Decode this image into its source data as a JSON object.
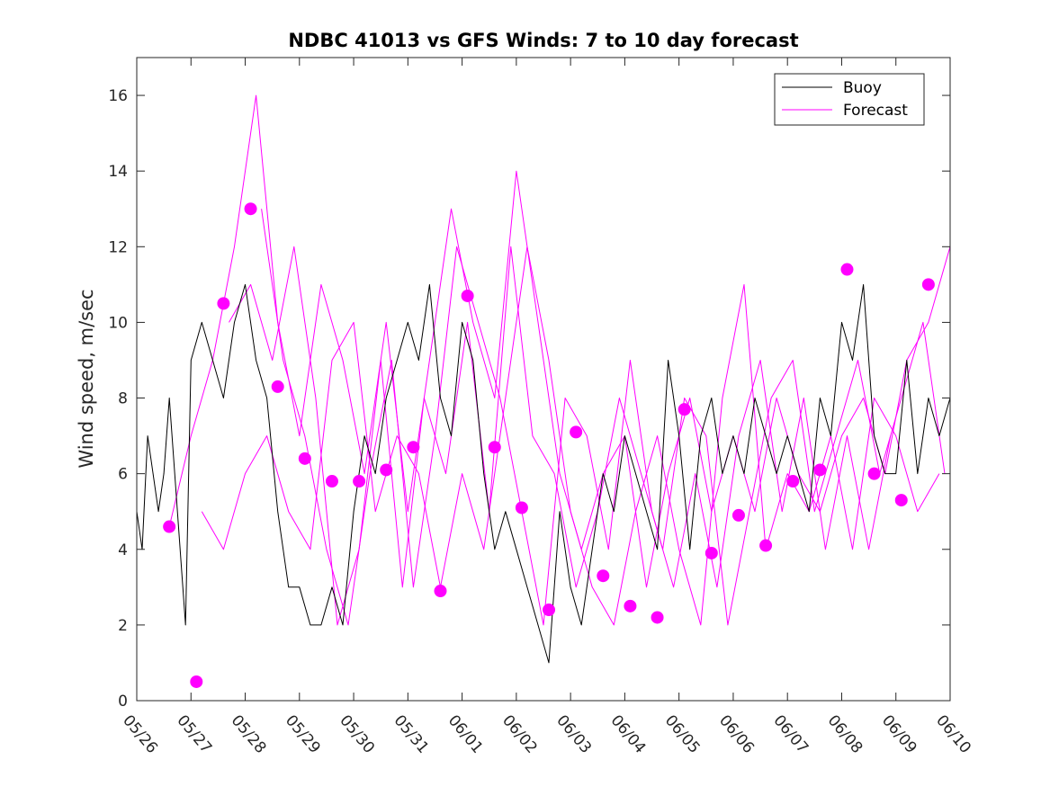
{
  "chart_data": {
    "type": "line",
    "title": "NDBC 41013 vs GFS Winds: 7 to 10 day forecast",
    "xlabel": "",
    "ylabel": "Wind speed, m/sec",
    "xlim": [
      0,
      15
    ],
    "ylim": [
      0,
      17
    ],
    "x_tick_labels": [
      "05/26",
      "05/27",
      "05/28",
      "05/29",
      "05/30",
      "05/31",
      "06/01",
      "06/02",
      "06/03",
      "06/04",
      "06/05",
      "06/06",
      "06/07",
      "06/08",
      "06/09",
      "06/10"
    ],
    "y_ticks": [
      0,
      2,
      4,
      6,
      8,
      10,
      12,
      14,
      16
    ],
    "grid": false,
    "legend_placement": "top-right",
    "legend": [
      "Buoy",
      "Forecast"
    ],
    "colors": {
      "buoy": "#000000",
      "forecast": "#ff00ff",
      "marker": "#ff00ff"
    },
    "series": [
      {
        "name": "Buoy",
        "x": [
          0.0,
          0.1,
          0.2,
          0.3,
          0.4,
          0.5,
          0.6,
          0.7,
          0.8,
          0.9,
          1.0,
          1.2,
          1.4,
          1.6,
          1.8,
          2.0,
          2.2,
          2.4,
          2.6,
          2.8,
          3.0,
          3.2,
          3.4,
          3.6,
          3.8,
          4.0,
          4.2,
          4.4,
          4.6,
          4.8,
          5.0,
          5.2,
          5.4,
          5.6,
          5.8,
          6.0,
          6.2,
          6.4,
          6.6,
          6.8,
          7.0,
          7.2,
          7.4,
          7.6,
          7.8,
          8.0,
          8.2,
          8.4,
          8.6,
          8.8,
          9.0,
          9.2,
          9.4,
          9.6,
          9.8,
          10.0,
          10.2,
          10.4,
          10.6,
          10.8,
          11.0,
          11.2,
          11.4,
          11.6,
          11.8,
          12.0,
          12.2,
          12.4,
          12.6,
          12.8,
          13.0,
          13.2,
          13.4,
          13.6,
          13.8,
          14.0,
          14.2,
          14.4,
          14.6,
          14.8,
          15.0
        ],
        "y": [
          5,
          4,
          7,
          6,
          5,
          6,
          8,
          6,
          4,
          2,
          9,
          10,
          9,
          8,
          10,
          11,
          9,
          8,
          5,
          3,
          3,
          2,
          2,
          3,
          2,
          5,
          7,
          6,
          8,
          9,
          10,
          9,
          11,
          8,
          7,
          10,
          9,
          6,
          4,
          5,
          4,
          3,
          2,
          1,
          5,
          3,
          2,
          4,
          6,
          5,
          7,
          6,
          5,
          4,
          9,
          7,
          4,
          7,
          8,
          6,
          7,
          6,
          8,
          7,
          6,
          7,
          6,
          5,
          8,
          7,
          10,
          9,
          11,
          7,
          6,
          6,
          9,
          6,
          8,
          7,
          8
        ]
      },
      {
        "name": "Forecast",
        "x": [
          0.6,
          1.0,
          1.4,
          1.8,
          2.2,
          2.6,
          3.0,
          3.4,
          3.8,
          4.2,
          4.6,
          5.0,
          5.4,
          5.8,
          6.2,
          6.6,
          7.0,
          7.4,
          7.8,
          8.2,
          8.6,
          9.0,
          9.4,
          9.8,
          10.2,
          10.6,
          11.0,
          11.4,
          11.8,
          12.2,
          12.6,
          13.0,
          13.4,
          13.8,
          14.2,
          14.6,
          15.0
        ],
        "y": [
          4.6,
          7,
          9,
          12,
          16,
          10,
          7,
          11,
          9,
          6,
          10,
          5,
          9,
          13,
          10,
          8,
          14,
          10,
          6,
          4,
          6,
          7,
          3,
          6,
          8,
          5,
          7,
          5,
          8,
          6,
          5,
          7,
          8,
          6,
          9,
          10,
          12
        ]
      },
      {
        "name": "Forecast",
        "x": [
          1.2,
          1.6,
          2.0,
          2.4,
          2.8,
          3.2,
          3.6,
          4.0,
          4.4,
          4.8,
          5.2,
          5.6,
          6.0,
          6.4,
          6.8,
          7.2,
          7.6,
          8.0,
          8.4,
          8.8,
          9.2,
          9.6,
          10.0,
          10.4,
          10.8,
          11.2,
          11.6,
          12.0,
          12.4,
          12.8,
          13.2,
          13.6,
          14.0,
          14.4,
          14.8
        ],
        "y": [
          5,
          4,
          6,
          7,
          5,
          4,
          9,
          10,
          5,
          7,
          6,
          3,
          6,
          4,
          8,
          12,
          9,
          5,
          3,
          2,
          5,
          7,
          4,
          2,
          8,
          11,
          4,
          6,
          5,
          7,
          4,
          8,
          7,
          5,
          6
        ]
      },
      {
        "name": "Forecast",
        "x": [
          1.7,
          2.1,
          2.5,
          2.9,
          3.3,
          3.7,
          4.1,
          4.5,
          4.9,
          5.3,
          5.7,
          6.1,
          6.5,
          6.9,
          7.3,
          7.7,
          8.1,
          8.5,
          8.9,
          9.3,
          9.7,
          10.1,
          10.5,
          10.9,
          11.3,
          11.7,
          12.1,
          12.5,
          12.9,
          13.3,
          13.7,
          14.1,
          14.5,
          14.9
        ],
        "y": [
          10,
          11,
          9,
          12,
          8,
          2,
          4,
          9,
          3,
          8,
          6,
          10,
          5,
          12,
          7,
          6,
          3,
          5,
          8,
          6,
          4,
          8,
          7,
          2,
          5,
          8,
          9,
          5,
          7,
          9,
          6,
          8,
          10,
          6
        ]
      },
      {
        "name": "Forecast",
        "x": [
          2.3,
          2.7,
          3.1,
          3.5,
          3.9,
          4.3,
          4.7,
          5.1,
          5.5,
          5.9,
          6.3,
          6.7,
          7.1,
          7.5,
          7.9,
          8.3,
          8.7,
          9.1,
          9.5,
          9.9,
          10.3,
          10.7,
          11.1,
          11.5,
          11.9,
          12.3,
          12.7,
          13.1,
          13.5,
          13.9
        ],
        "y": [
          13,
          9,
          7,
          4,
          2,
          6,
          9,
          3,
          7,
          12,
          10,
          8,
          5,
          2,
          8,
          7,
          4,
          9,
          5,
          3,
          6,
          3,
          7,
          9,
          5,
          8,
          4,
          7,
          4,
          7
        ]
      }
    ],
    "markers": {
      "name": "Forecast",
      "x": [
        0.6,
        1.1,
        1.6,
        2.1,
        2.6,
        3.1,
        3.6,
        4.1,
        4.6,
        5.1,
        5.6,
        6.1,
        6.6,
        7.1,
        7.6,
        8.1,
        8.6,
        9.1,
        9.6,
        10.1,
        10.6,
        11.1,
        11.6,
        12.1,
        12.6,
        13.1,
        13.6,
        14.1,
        14.6
      ],
      "y": [
        4.6,
        0.5,
        10.5,
        13,
        8.3,
        6.4,
        5.8,
        5.8,
        6.1,
        6.7,
        2.9,
        10.7,
        6.7,
        5.1,
        2.4,
        7.1,
        3.3,
        2.5,
        2.2,
        7.7,
        3.9,
        4.9,
        4.1,
        5.8,
        6.1,
        11.4,
        6.0,
        5.3,
        11.0
      ]
    }
  }
}
